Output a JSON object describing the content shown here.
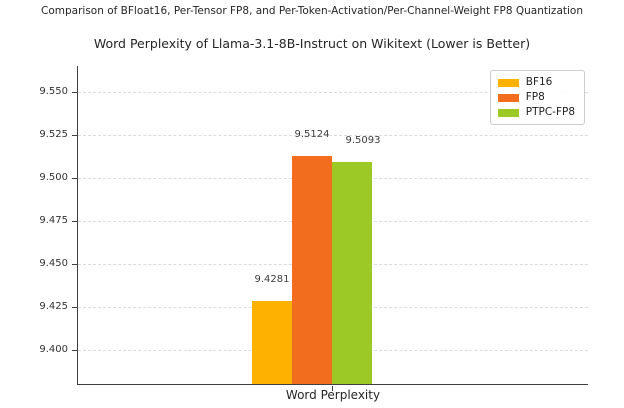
{
  "figure": {
    "suptitle": "Comparison of BFloat16, Per-Tensor FP8, and Per-Token-Activation/Per-Channel-Weight FP8 Quantization",
    "title": "Word Perplexity of Llama-3.1-8B-Instruct on Wikitext (Lower is Better)"
  },
  "chart_data": {
    "type": "bar",
    "title": "Word Perplexity of Llama-3.1-8B-Instruct on Wikitext (Lower is Better)",
    "suptitle": "Comparison of BFloat16, Per-Tensor FP8, and Per-Token-Activation/Per-Channel-Weight FP8 Quantization",
    "categories": [
      "Word Perplexity"
    ],
    "series": [
      {
        "name": "BF16",
        "values": [
          9.4281
        ],
        "color": "#FFB100",
        "value_label": "9.4281"
      },
      {
        "name": "FP8",
        "values": [
          9.5124
        ],
        "color": "#F36D1E",
        "value_label": "9.5124"
      },
      {
        "name": "PTPC-FP8",
        "values": [
          9.5093
        ],
        "color": "#9CC926",
        "value_label": "9.5093"
      }
    ],
    "xlabel": "",
    "ylabel": "",
    "ylim": [
      9.38,
      9.565
    ],
    "yticks": [
      9.4,
      9.425,
      9.45,
      9.475,
      9.5,
      9.525,
      9.55
    ],
    "ytick_labels": [
      "9.400",
      "9.425",
      "9.450",
      "9.475",
      "9.500",
      "9.525",
      "9.550"
    ],
    "grid": true,
    "grid_style": "dashed",
    "legend": {
      "position": "upper right",
      "entries": [
        "BF16",
        "FP8",
        "PTPC-FP8"
      ]
    },
    "colors": {
      "spine": "#3f3f3f",
      "grid": "#dcdcdc",
      "text": "#262626"
    }
  }
}
